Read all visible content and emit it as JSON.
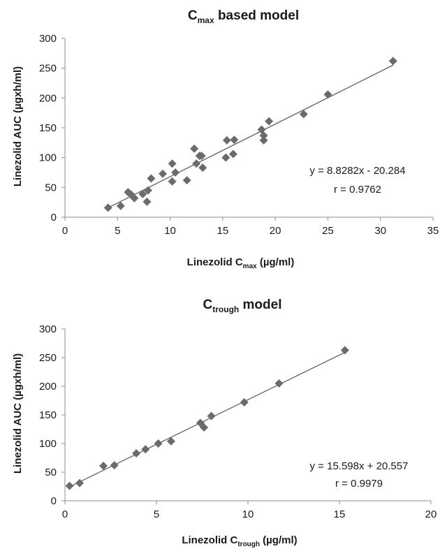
{
  "chart_data": [
    {
      "type": "scatter",
      "title_main": "C",
      "title_sub": "max",
      "title_rest": " based model",
      "xlabel_main": "Linezolid C",
      "xlabel_sub": "max",
      "xlabel_rest": " (µg/ml)",
      "ylabel": "Linezolid AUC (µgxh/ml)",
      "xlim": [
        0,
        35
      ],
      "ylim": [
        0,
        300
      ],
      "xticks": [
        0,
        5,
        10,
        15,
        20,
        25,
        30,
        35
      ],
      "yticks": [
        0,
        50,
        100,
        150,
        200,
        250,
        300
      ],
      "equation": "y = 8.8282x - 20.284",
      "r_text": "r = 0.9762",
      "trendline": {
        "slope": 8.8282,
        "intercept": -20.284,
        "x_range": [
          4.0,
          31.2
        ]
      },
      "points": [
        [
          4.1,
          16
        ],
        [
          5.3,
          19
        ],
        [
          6.0,
          42
        ],
        [
          6.3,
          38
        ],
        [
          6.6,
          32
        ],
        [
          7.4,
          39
        ],
        [
          7.8,
          26
        ],
        [
          7.9,
          45
        ],
        [
          8.2,
          65
        ],
        [
          9.3,
          73
        ],
        [
          10.2,
          60
        ],
        [
          10.2,
          90
        ],
        [
          10.5,
          75
        ],
        [
          11.6,
          62
        ],
        [
          12.3,
          115
        ],
        [
          12.5,
          90
        ],
        [
          12.8,
          103
        ],
        [
          13.0,
          103
        ],
        [
          13.1,
          83
        ],
        [
          15.3,
          100
        ],
        [
          15.4,
          129
        ],
        [
          16.0,
          106
        ],
        [
          16.1,
          130
        ],
        [
          18.7,
          147
        ],
        [
          18.9,
          129
        ],
        [
          18.9,
          137
        ],
        [
          19.4,
          161
        ],
        [
          22.7,
          173
        ],
        [
          25.0,
          206
        ],
        [
          31.2,
          262
        ]
      ]
    },
    {
      "type": "scatter",
      "title_main": "C",
      "title_sub": "trough",
      "title_rest": " model",
      "xlabel_main": "Linezolid C",
      "xlabel_sub": "trough",
      "xlabel_rest": " (µg/ml)",
      "ylabel": "Linezolid AUC (µgxh/ml)",
      "xlim": [
        0,
        20
      ],
      "ylim": [
        0,
        300
      ],
      "xticks": [
        0,
        5,
        10,
        15,
        20
      ],
      "yticks": [
        0,
        50,
        100,
        150,
        200,
        250,
        300
      ],
      "equation": "y = 15.598x + 20.557",
      "r_text": "r = 0.9979",
      "trendline": {
        "slope": 15.598,
        "intercept": 20.557,
        "x_range": [
          0.25,
          15.3
        ]
      },
      "points": [
        [
          0.25,
          26
        ],
        [
          0.8,
          31
        ],
        [
          2.1,
          61
        ],
        [
          2.7,
          62
        ],
        [
          3.9,
          83
        ],
        [
          4.4,
          90
        ],
        [
          5.1,
          100
        ],
        [
          5.8,
          104
        ],
        [
          7.4,
          136
        ],
        [
          7.6,
          128
        ],
        [
          8.0,
          148
        ],
        [
          9.8,
          172
        ],
        [
          11.7,
          205
        ],
        [
          15.3,
          263
        ]
      ]
    }
  ]
}
